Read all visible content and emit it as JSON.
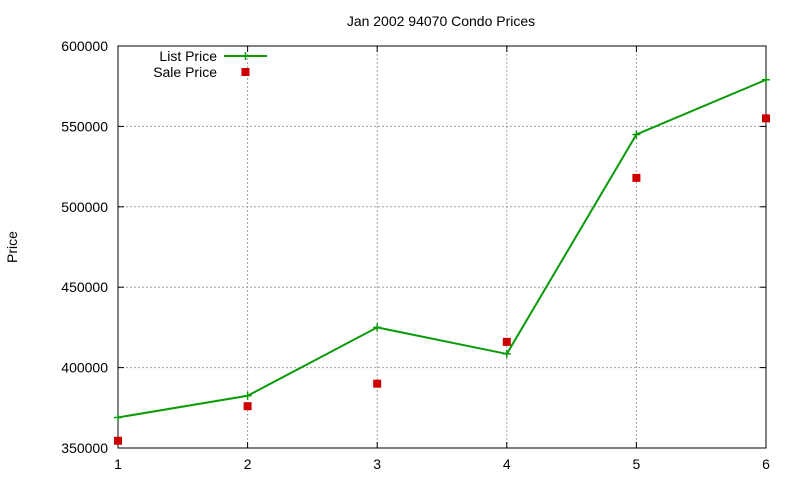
{
  "chart_data": {
    "type": "line",
    "title": "Jan 2002 94070 Condo Prices",
    "xlabel": "",
    "ylabel": "Price",
    "x": [
      1,
      2,
      3,
      4,
      5,
      6
    ],
    "xlim": [
      1,
      6
    ],
    "ylim": [
      350000,
      600000
    ],
    "xticks": [
      "1",
      "2",
      "3",
      "4",
      "5",
      "6"
    ],
    "yticks": [
      "350000",
      "400000",
      "450000",
      "500000",
      "550000",
      "600000"
    ],
    "grid": true,
    "legend_position": "top-left",
    "series": [
      {
        "name": "List Price",
        "style": "line-with-plus-markers",
        "color": "#0a9a0a",
        "values": [
          369000,
          382500,
          425000,
          408500,
          545000,
          579000
        ]
      },
      {
        "name": "Sale Price",
        "style": "square-markers",
        "color": "#cc0000",
        "values": [
          354500,
          376000,
          390000,
          416000,
          518000,
          555000
        ]
      }
    ]
  }
}
